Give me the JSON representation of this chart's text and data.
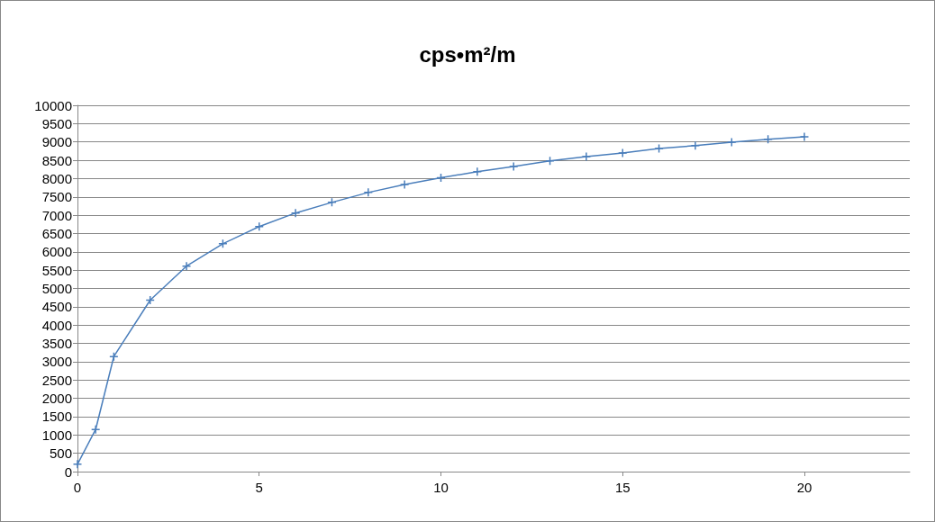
{
  "chart_data": {
    "type": "line",
    "title": "cps•m²/m",
    "x": [
      0,
      0.5,
      1,
      2,
      3,
      4,
      5,
      6,
      7,
      8,
      9,
      10,
      11,
      12,
      13,
      14,
      15,
      16,
      17,
      18,
      19,
      20
    ],
    "series": [
      {
        "color": "#4a7ebb",
        "values": [
          200,
          1150,
          3140,
          4680,
          5610,
          6220,
          6690,
          7060,
          7350,
          7620,
          7840,
          8020,
          8190,
          8330,
          8480,
          8600,
          8700,
          8820,
          8900,
          8990,
          9070,
          9140
        ]
      }
    ],
    "xlim": [
      0,
      22.9
    ],
    "xticks": [
      0,
      5,
      10,
      15,
      20
    ],
    "ylim": [
      0,
      10000
    ],
    "yticks": [
      0,
      500,
      1000,
      1500,
      2000,
      2500,
      3000,
      3500,
      4000,
      4500,
      5000,
      5500,
      6000,
      6500,
      7000,
      7500,
      8000,
      8500,
      9000,
      9500,
      10000
    ],
    "grid": "y",
    "marker": "cross",
    "line_style": "solid"
  }
}
